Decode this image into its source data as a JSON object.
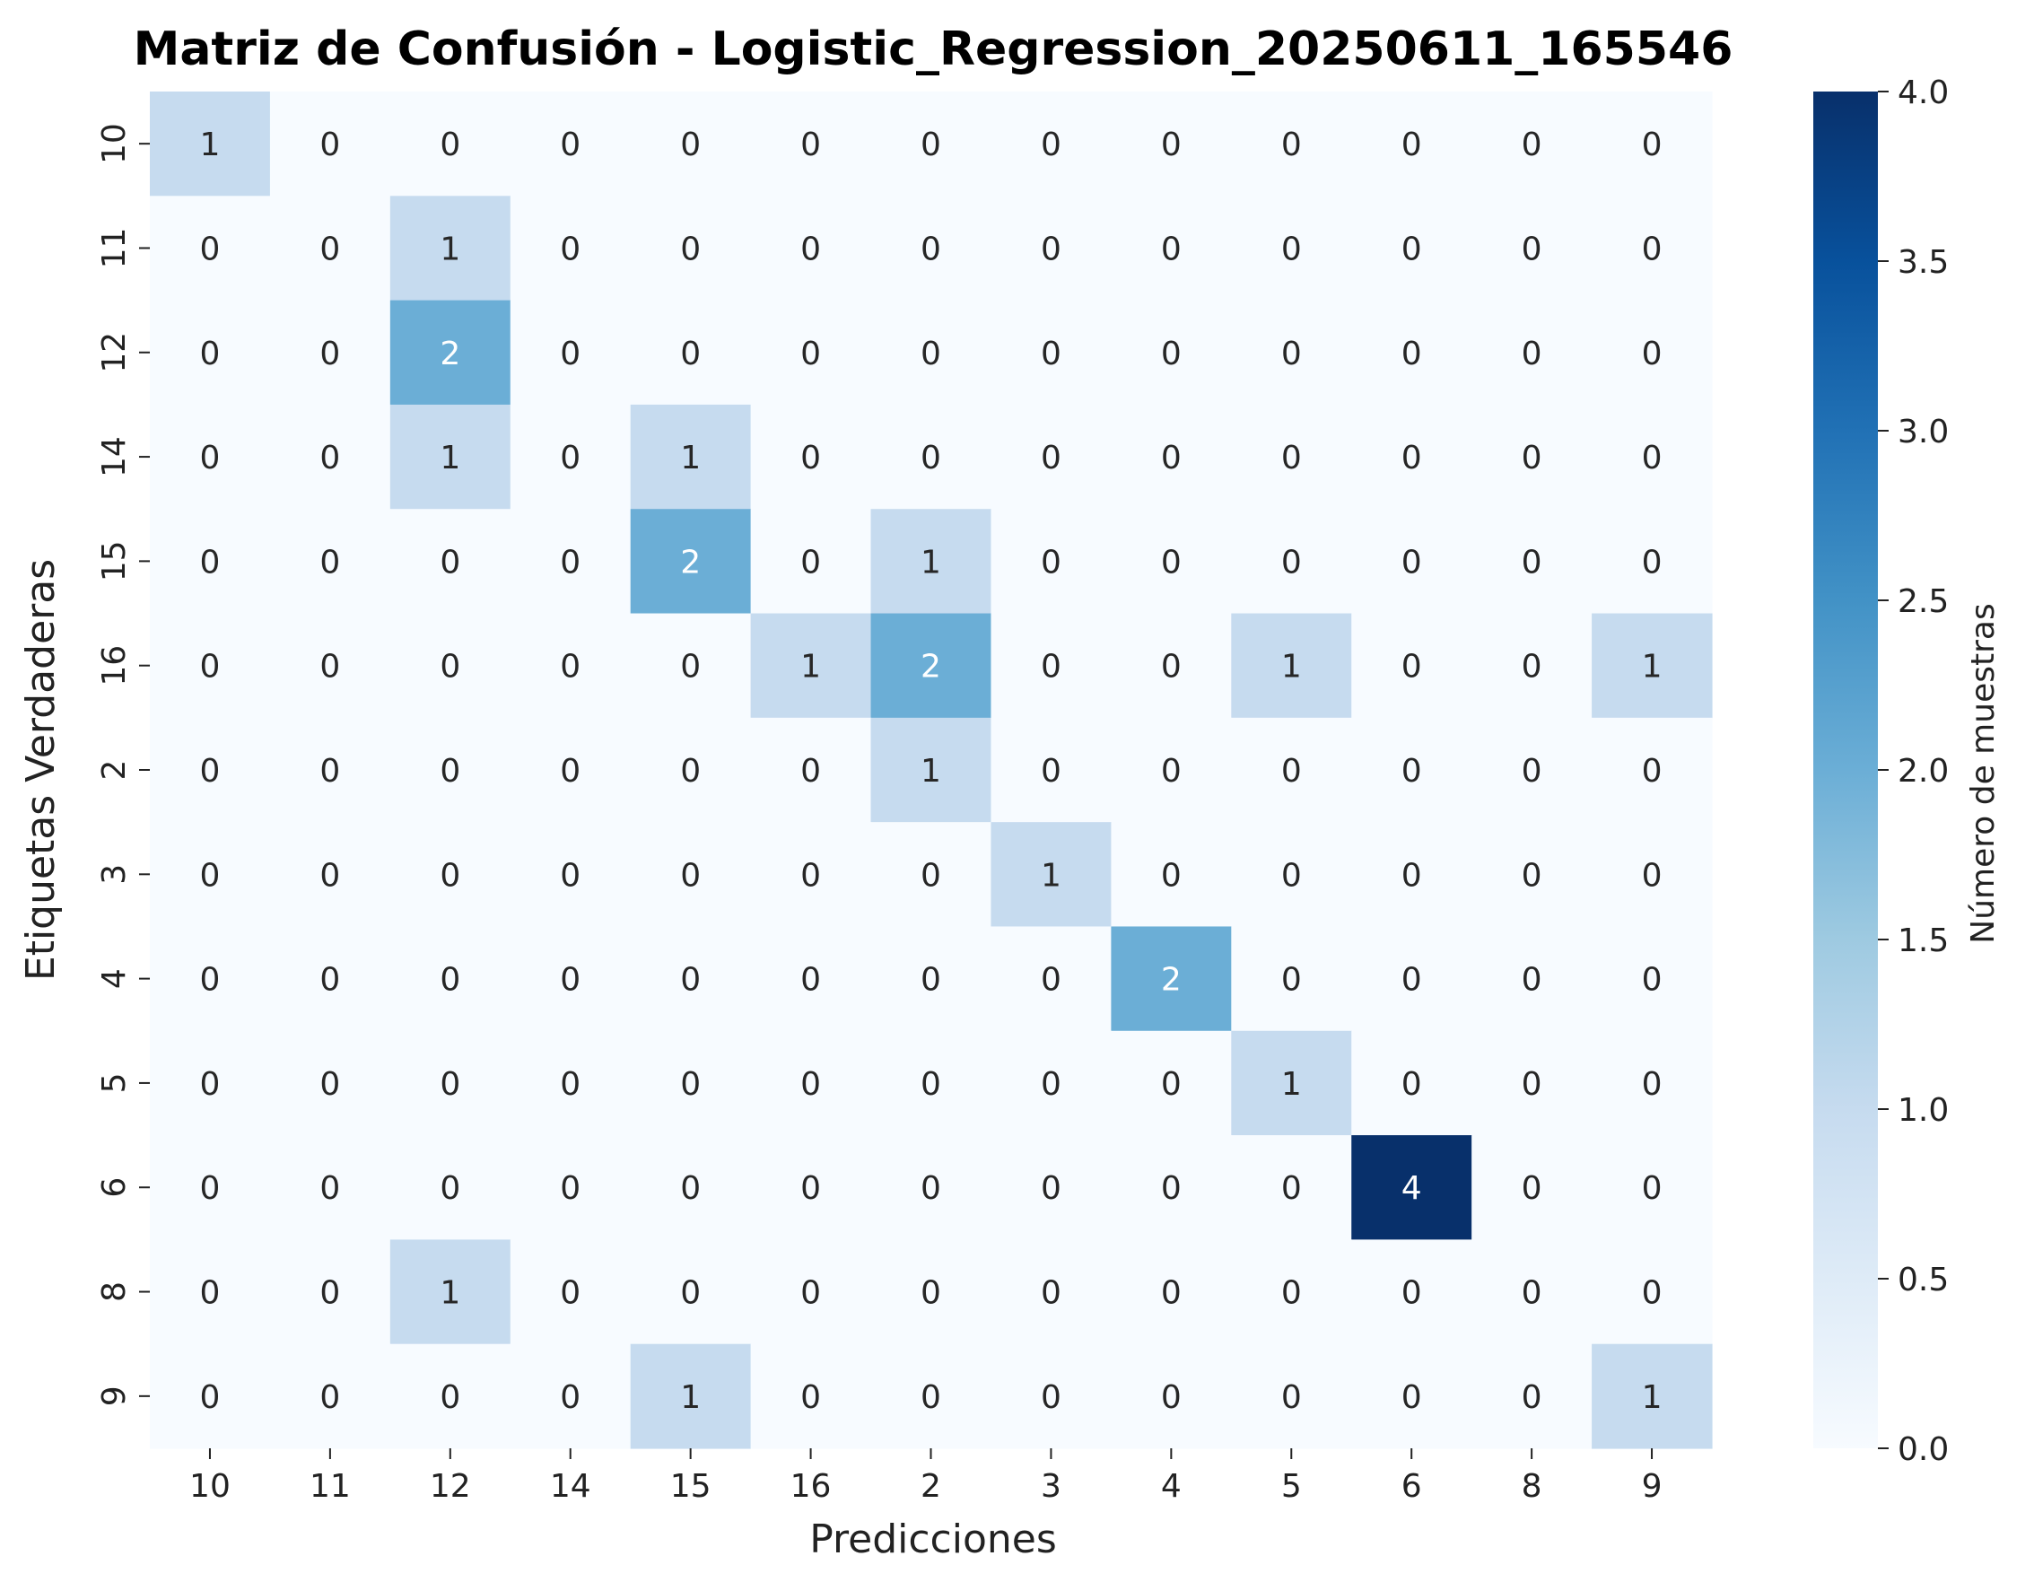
{
  "chart_data": {
    "type": "heatmap",
    "title": "Matriz de Confusión - Logistic_Regression_20250611_165546",
    "xlabel": "Predicciones",
    "ylabel": "Etiquetas Verdaderas",
    "x_categories": [
      "10",
      "11",
      "12",
      "14",
      "15",
      "16",
      "2",
      "3",
      "4",
      "5",
      "6",
      "8",
      "9"
    ],
    "y_categories": [
      "10",
      "11",
      "12",
      "14",
      "15",
      "16",
      "2",
      "3",
      "4",
      "5",
      "6",
      "8",
      "9"
    ],
    "matrix": [
      [
        1,
        0,
        0,
        0,
        0,
        0,
        0,
        0,
        0,
        0,
        0,
        0,
        0
      ],
      [
        0,
        0,
        1,
        0,
        0,
        0,
        0,
        0,
        0,
        0,
        0,
        0,
        0
      ],
      [
        0,
        0,
        2,
        0,
        0,
        0,
        0,
        0,
        0,
        0,
        0,
        0,
        0
      ],
      [
        0,
        0,
        1,
        0,
        1,
        0,
        0,
        0,
        0,
        0,
        0,
        0,
        0
      ],
      [
        0,
        0,
        0,
        0,
        2,
        0,
        1,
        0,
        0,
        0,
        0,
        0,
        0
      ],
      [
        0,
        0,
        0,
        0,
        0,
        1,
        2,
        0,
        0,
        1,
        0,
        0,
        1
      ],
      [
        0,
        0,
        0,
        0,
        0,
        0,
        1,
        0,
        0,
        0,
        0,
        0,
        0
      ],
      [
        0,
        0,
        0,
        0,
        0,
        0,
        0,
        1,
        0,
        0,
        0,
        0,
        0
      ],
      [
        0,
        0,
        0,
        0,
        0,
        0,
        0,
        0,
        2,
        0,
        0,
        0,
        0
      ],
      [
        0,
        0,
        0,
        0,
        0,
        0,
        0,
        0,
        0,
        1,
        0,
        0,
        0
      ],
      [
        0,
        0,
        0,
        0,
        0,
        0,
        0,
        0,
        0,
        0,
        4,
        0,
        0
      ],
      [
        0,
        0,
        1,
        0,
        0,
        0,
        0,
        0,
        0,
        0,
        0,
        0,
        0
      ],
      [
        0,
        0,
        0,
        0,
        1,
        0,
        0,
        0,
        0,
        0,
        0,
        0,
        1
      ]
    ],
    "colorbar": {
      "label": "Número de muestras",
      "range": [
        0.0,
        4.0
      ],
      "ticks": [
        "0.0",
        "0.5",
        "1.0",
        "1.5",
        "2.0",
        "2.5",
        "3.0",
        "3.5",
        "4.0"
      ],
      "colormap": "Blues"
    }
  }
}
